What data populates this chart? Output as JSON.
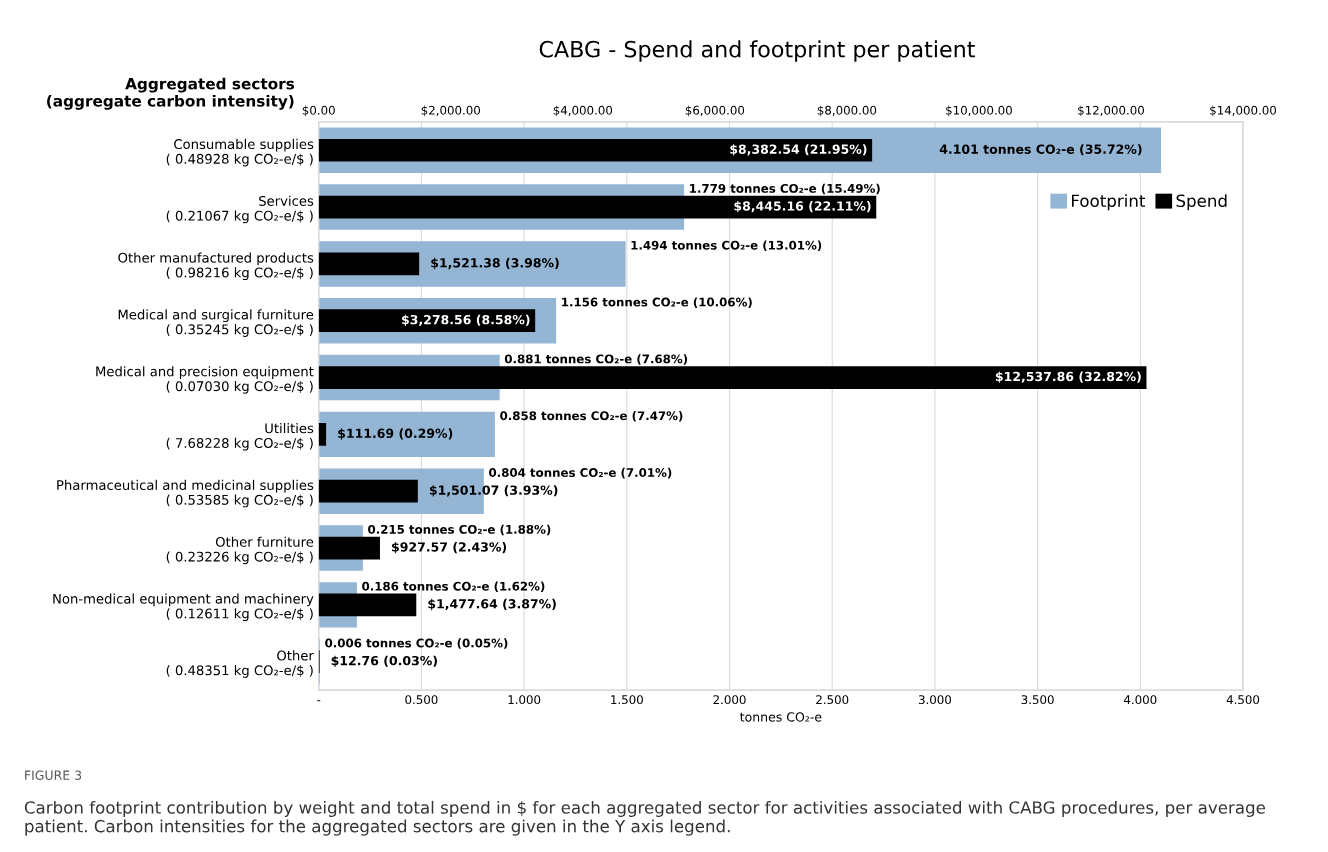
{
  "chart_data": {
    "type": "bar",
    "orientation": "horizontal",
    "title": "CABG - Spend and footprint per patient",
    "ylabel": "Aggregated sectors\n(aggregate carbon intensity)",
    "xlabel": "tonnes CO₂-e",
    "categories": [
      "Consumable supplies\n( 0.48928 kg CO₂-e/$ )",
      "Services\n( 0.21067 kg CO₂-e/$ )",
      "Other manufactured products\n( 0.98216 kg CO₂-e/$ )",
      "Medical and surgical furniture\n( 0.35245 kg CO₂-e/$ )",
      "Medical and precision equipment\n( 0.07030 kg CO₂-e/$ )",
      "Utilities\n( 7.68228 kg CO₂-e/$ )",
      "Pharmaceutical and medicinal supplies\n( 0.53585 kg CO₂-e/$ )",
      "Other furniture\n( 0.23226 kg CO₂-e/$ )",
      "Non-medical equipment and machinery\n( 0.12611 kg CO₂-e/$ )",
      "Other\n( 0.48351 kg CO₂-e/$ )"
    ],
    "series": [
      {
        "name": "Footprint",
        "color": "#94b6d4",
        "values": [
          4.101,
          1.779,
          1.494,
          1.156,
          0.881,
          0.858,
          0.804,
          0.215,
          0.186,
          0.006
        ],
        "value_labels": [
          "4.101 tonnes CO₂-e (35.72%)",
          "1.779 tonnes CO₂-e (15.49%)",
          "1.494 tonnes CO₂-e (13.01%)",
          "1.156 tonnes CO₂-e (10.06%)",
          "0.881 tonnes CO₂-e (7.68%)",
          "0.858 tonnes CO₂-e (7.47%)",
          "0.804 tonnes CO₂-e (7.01%)",
          "0.215 tonnes CO₂-e (1.88%)",
          "0.186 tonnes CO₂-e (1.62%)",
          "0.006 tonnes CO₂-e (0.05%)"
        ]
      },
      {
        "name": "Spend",
        "color": "#000000",
        "axis": "x2",
        "values": [
          8382.54,
          8445.16,
          1521.38,
          3278.56,
          12537.86,
          111.69,
          1501.07,
          927.57,
          1477.64,
          12.76
        ],
        "value_labels": [
          "$8,382.54 (21.95%)",
          "$8,445.16 (22.11%)",
          "$1,521.38 (3.98%)",
          "$3,278.56 (8.58%)",
          "$12,537.86 (32.82%)",
          "$111.69 (0.29%)",
          "$1,501.07 (3.93%)",
          "$927.57 (2.43%)",
          "$1,477.64 (3.87%)",
          "$12.76 (0.03%)"
        ]
      }
    ],
    "xlim": [
      0,
      4.5
    ],
    "xticks": [
      {
        "value": 0,
        "label": "-"
      },
      {
        "value": 0.5,
        "label": "0.500"
      },
      {
        "value": 1.0,
        "label": "1.000"
      },
      {
        "value": 1.5,
        "label": "1.500"
      },
      {
        "value": 2.0,
        "label": "2.000"
      },
      {
        "value": 2.5,
        "label": "2.500"
      },
      {
        "value": 3.0,
        "label": "3.000"
      },
      {
        "value": 3.5,
        "label": "3.500"
      },
      {
        "value": 4.0,
        "label": "4.000"
      },
      {
        "value": 4.5,
        "label": "4.500"
      }
    ],
    "x2lim": [
      0,
      14000
    ],
    "x2ticks": [
      {
        "value": 0,
        "label": "$0.00"
      },
      {
        "value": 2000,
        "label": "$2,000.00"
      },
      {
        "value": 4000,
        "label": "$4,000.00"
      },
      {
        "value": 6000,
        "label": "$6,000.00"
      },
      {
        "value": 8000,
        "label": "$8,000.00"
      },
      {
        "value": 10000,
        "label": "$10,000.00"
      },
      {
        "value": 12000,
        "label": "$12,000.00"
      },
      {
        "value": 14000,
        "label": "$14,000.00"
      }
    ],
    "grid": "x",
    "legend": "top right",
    "annotations": [
      "FIGURE 3",
      "Carbon footprint contribution by weight and total spend in $ for each aggregated sector for activities associated with CABG procedures, per average patient. Carbon intensities for the aggregated sectors are given in the Y axis legend."
    ]
  }
}
